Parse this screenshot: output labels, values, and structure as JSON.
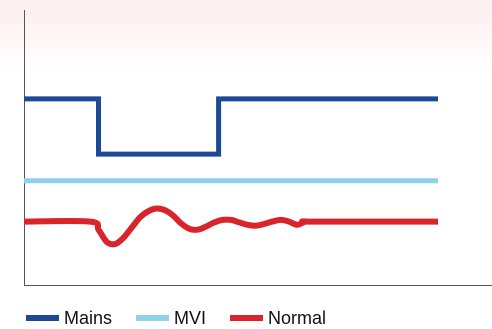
{
  "chart_data": {
    "type": "line",
    "title": "",
    "xlabel": "",
    "ylabel": "",
    "grid": false,
    "legend_position": "bottom-left",
    "series": [
      {
        "name": "Mains",
        "color": "#1d4a96",
        "points": [
          [
            0,
            4.6
          ],
          [
            18,
            4.6
          ],
          [
            18,
            3.25
          ],
          [
            47,
            3.25
          ],
          [
            47,
            4.6
          ],
          [
            100,
            4.6
          ]
        ]
      },
      {
        "name": "MVI",
        "color": "#8fd0eb",
        "points": [
          [
            0,
            2.6
          ],
          [
            100,
            2.6
          ]
        ]
      },
      {
        "name": "Normal",
        "color": "#d9242b",
        "points": [
          [
            0,
            1.6
          ],
          [
            16,
            1.6
          ],
          [
            18,
            1.4
          ],
          [
            20,
            1.1
          ],
          [
            22,
            1.05
          ],
          [
            24,
            1.2
          ],
          [
            26,
            1.45
          ],
          [
            28,
            1.7
          ],
          [
            30,
            1.85
          ],
          [
            32,
            1.92
          ],
          [
            34,
            1.88
          ],
          [
            36,
            1.75
          ],
          [
            38,
            1.55
          ],
          [
            40,
            1.42
          ],
          [
            42,
            1.4
          ],
          [
            44,
            1.48
          ],
          [
            46,
            1.58
          ],
          [
            48,
            1.64
          ],
          [
            50,
            1.64
          ],
          [
            52,
            1.58
          ],
          [
            54,
            1.52
          ],
          [
            56,
            1.5
          ],
          [
            58,
            1.54
          ],
          [
            60,
            1.6
          ],
          [
            62,
            1.64
          ],
          [
            64,
            1.6
          ],
          [
            66,
            1.52
          ],
          [
            68,
            1.6
          ],
          [
            70,
            1.6
          ],
          [
            100,
            1.6
          ]
        ]
      }
    ]
  }
}
